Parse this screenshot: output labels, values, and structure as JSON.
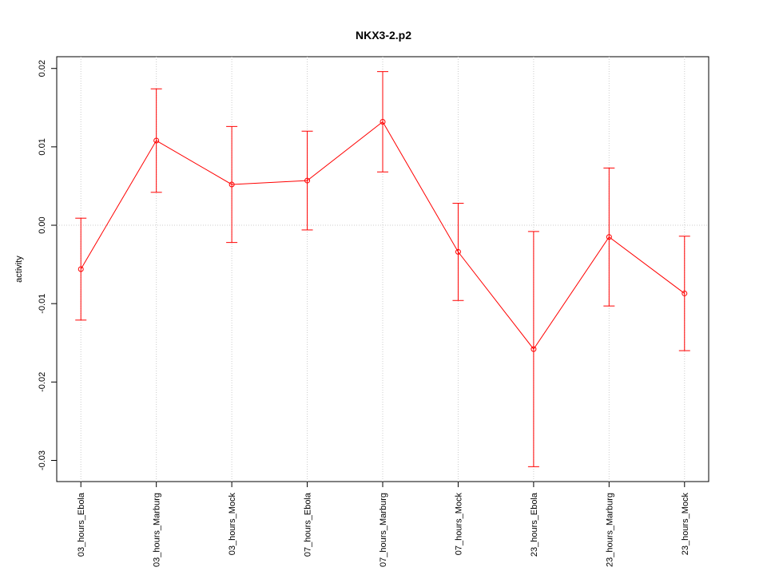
{
  "chart_data": {
    "type": "line",
    "title": "NKX3-2.p2",
    "ylabel": "activity",
    "categories": [
      "03_hours_Ebola",
      "03_hours_Marburg",
      "03_hours_Mock",
      "07_hours_Ebola",
      "07_hours_Marburg",
      "07_hours_Mock",
      "23_hours_Ebola",
      "23_hours_Marburg",
      "23_hours_Mock"
    ],
    "series": [
      {
        "name": "activity",
        "color": "#ff0000",
        "values": [
          -0.0056,
          0.0108,
          0.0052,
          0.0057,
          0.0132,
          -0.0034,
          -0.0158,
          -0.0015,
          -0.0087
        ],
        "errors": [
          0.0065,
          0.0066,
          0.0074,
          0.0063,
          0.0064,
          0.0062,
          0.015,
          0.0088,
          0.0073
        ]
      }
    ],
    "ylim": [
      -0.0327,
      0.0215
    ],
    "yticks": [
      -0.03,
      -0.02,
      -0.01,
      {
        "value": 0,
        "label": "0.00"
      },
      0.01,
      0.02
    ],
    "grid": "x",
    "hline": 0
  }
}
